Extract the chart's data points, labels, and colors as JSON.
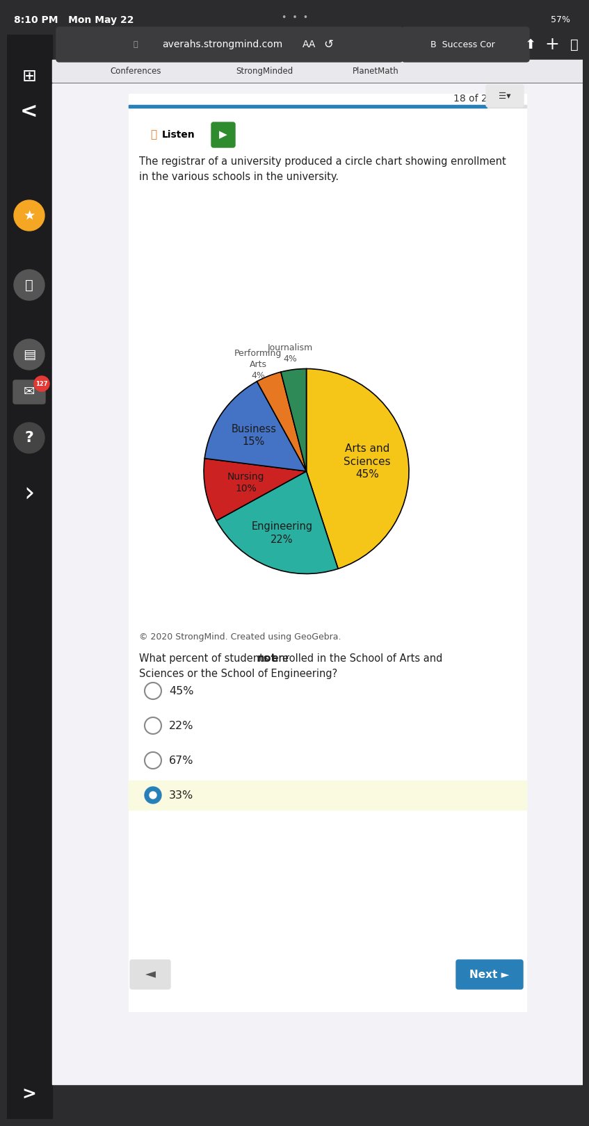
{
  "browser_bg": "#2c2c2e",
  "content_bg": "#f2f2f7",
  "white_bg": "#ffffff",
  "status_time": "8:10 PM   Mon May 22",
  "url": "averahs.strongmind.com",
  "page_counter": "18 of 20",
  "progress_color": "#2980b9",
  "listen_text": "Listen",
  "chart_title_text": "The registrar of a university produced a circle chart showing enrollment\nin the various schools in the university.",
  "copyright_text": "© 2020 StrongMind. Created using GeoGebra.",
  "question_text": "What percent of students are ",
  "question_bold": "not",
  "question_rest": " enrolled in the School of Arts and",
  "question_rest2": "Sciences or the School of Engineering?",
  "slices": [
    {
      "label": "Arts and\nSciences",
      "pct": 45,
      "color": "#f5c518",
      "label_color": "#1a1a1a"
    },
    {
      "label": "Engineering",
      "pct": 22,
      "color": "#2ab0a0",
      "label_color": "#1a1a1a"
    },
    {
      "label": "Nursing",
      "pct": 10,
      "color": "#cc2222",
      "label_color": "#1a1a1a"
    },
    {
      "label": "Business",
      "pct": 15,
      "color": "#4472c4",
      "label_color": "#1a1a1a"
    },
    {
      "label": "Performing\nArts",
      "pct": 4,
      "color": "#e87722",
      "label_color": "#555555"
    },
    {
      "label": "Journalism",
      "pct": 4,
      "color": "#2e8b57",
      "label_color": "#555555"
    }
  ],
  "choices": [
    "45%",
    "22%",
    "67%",
    "33%"
  ],
  "selected_index": 3,
  "selected_bg": "#fafae0",
  "selected_circle_color": "#2980b9",
  "nav_bg": "#2980b9",
  "nav_text": "Next ►",
  "back_text": "◄",
  "sidebar_bg": "#1c1c1e",
  "tabs_bar": [
    "Conferences",
    "StrongMinded",
    "PlanetMath"
  ],
  "battery_pct": "57%",
  "label_configs": [
    {
      "r": 0.6,
      "inside": true,
      "fontsize": 11
    },
    {
      "r": 0.65,
      "inside": true,
      "fontsize": 10.5
    },
    {
      "r": 0.6,
      "inside": true,
      "fontsize": 10
    },
    {
      "r": 0.62,
      "inside": true,
      "fontsize": 10.5
    },
    {
      "r": 1.28,
      "inside": false,
      "fontsize": 9
    },
    {
      "r": 1.26,
      "inside": false,
      "fontsize": 9
    }
  ]
}
